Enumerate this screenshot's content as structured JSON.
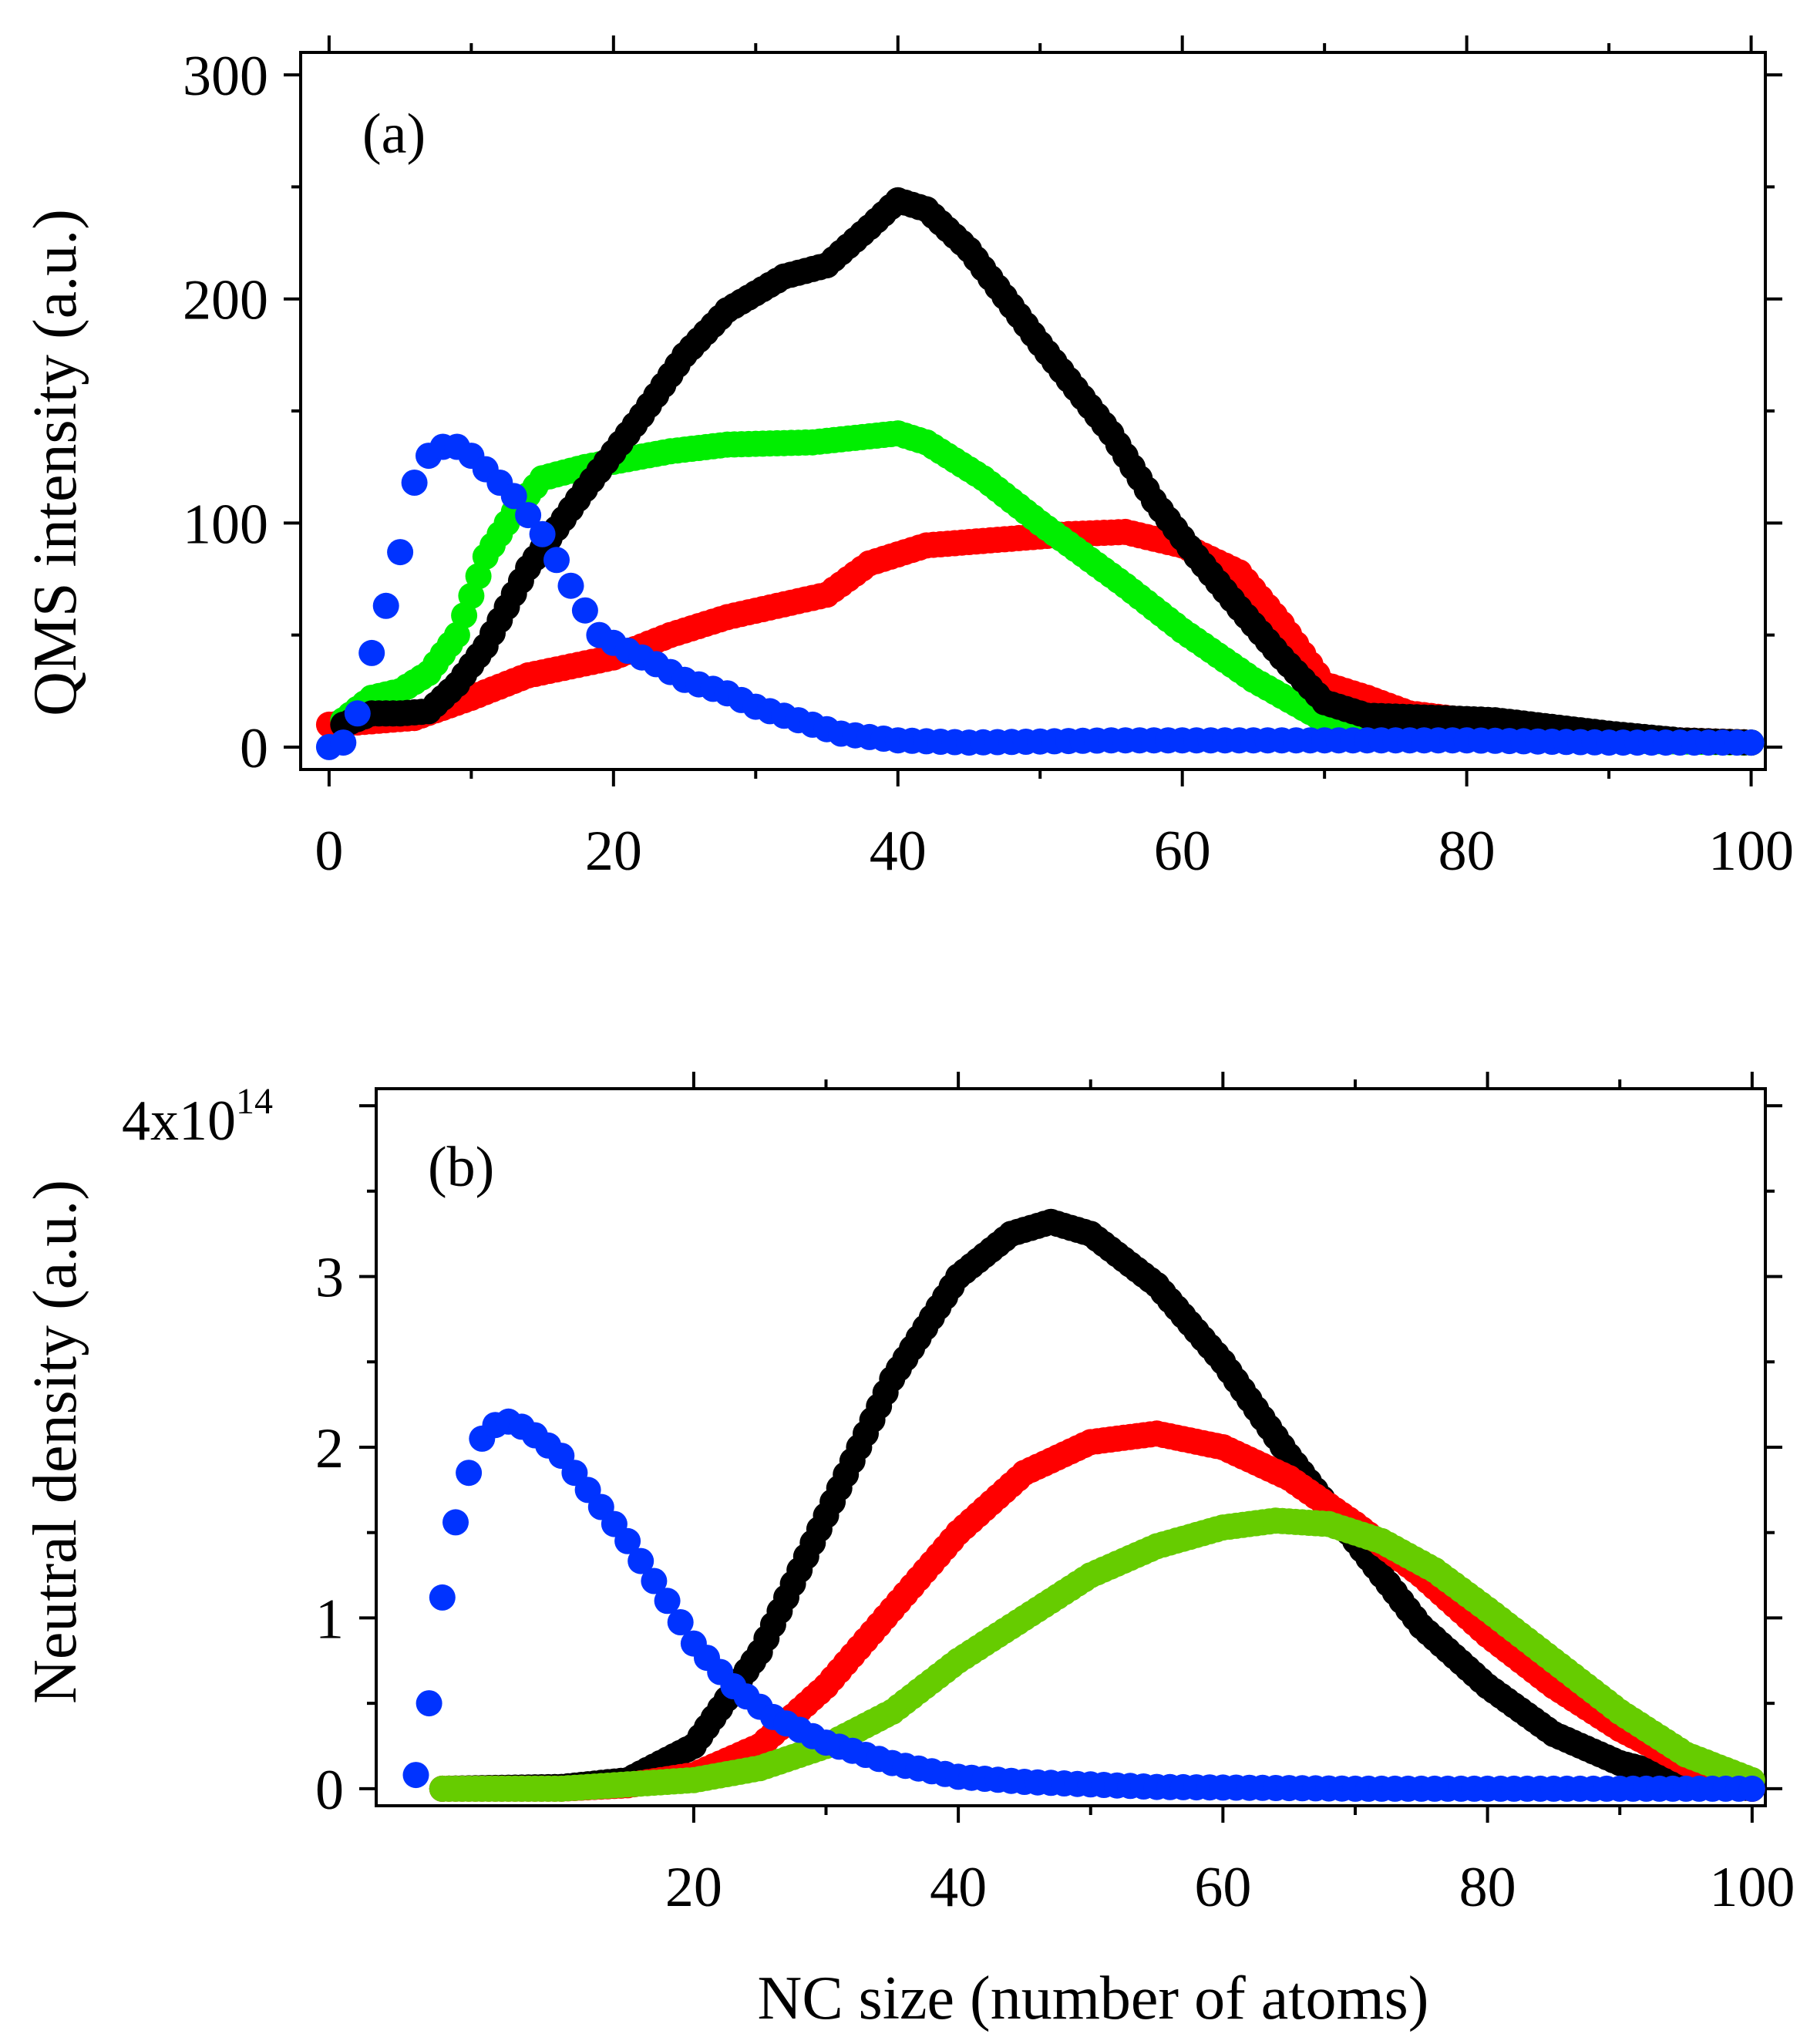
{
  "chart_data": [
    {
      "type": "scatter",
      "panel_label": "(a)",
      "ylabel": "QMS intensity (a.u.)",
      "xlabel": "",
      "xlim": [
        -2,
        101
      ],
      "ylim": [
        -10,
        310
      ],
      "x_ticks": [
        0,
        20,
        40,
        60,
        80,
        100
      ],
      "x_tick_labels": [
        "0",
        "20",
        "40",
        "60",
        "80",
        "100"
      ],
      "y_ticks": [
        0,
        100,
        200,
        300
      ],
      "y_tick_labels": [
        "0",
        "100",
        "200",
        "300"
      ],
      "x_minor_ticks": [
        10,
        30,
        50,
        70,
        90
      ],
      "y_minor_ticks": [
        50,
        150,
        250
      ],
      "series": [
        {
          "name": "red",
          "color": "#ff0000",
          "x_start": 0,
          "x_step": 0.5,
          "points": [
            [
              0,
              10
            ],
            [
              6,
              13
            ],
            [
              10,
              22
            ],
            [
              14,
              32
            ],
            [
              20,
              40
            ],
            [
              24,
              50
            ],
            [
              28,
              58
            ],
            [
              35,
              68
            ],
            [
              38,
              82
            ],
            [
              42,
              90
            ],
            [
              48,
              93
            ],
            [
              52,
              95
            ],
            [
              56,
              96
            ],
            [
              60,
              90
            ],
            [
              64,
              78
            ],
            [
              67,
              55
            ],
            [
              70,
              28
            ],
            [
              73,
              22
            ],
            [
              76,
              15
            ],
            [
              80,
              12
            ],
            [
              85,
              8
            ],
            [
              90,
              5
            ],
            [
              95,
              3
            ],
            [
              100,
              2
            ]
          ]
        },
        {
          "name": "green",
          "color": "#00ee00",
          "x_start": 1,
          "x_step": 0.5,
          "points": [
            [
              1,
              12
            ],
            [
              3,
              22
            ],
            [
              5,
              25
            ],
            [
              7,
              33
            ],
            [
              9,
              50
            ],
            [
              11,
              85
            ],
            [
              13,
              105
            ],
            [
              15,
              120
            ],
            [
              18,
              125
            ],
            [
              24,
              132
            ],
            [
              28,
              135
            ],
            [
              34,
              136
            ],
            [
              40,
              140
            ],
            [
              42,
              136
            ],
            [
              46,
              120
            ],
            [
              50,
              100
            ],
            [
              56,
              72
            ],
            [
              60,
              52
            ],
            [
              65,
              30
            ],
            [
              70,
              12
            ],
            [
              75,
              7
            ],
            [
              80,
              5
            ],
            [
              90,
              3
            ],
            [
              100,
              2
            ]
          ]
        },
        {
          "name": "black",
          "color": "#000000",
          "x_start": 1,
          "x_step": 0.5,
          "points": [
            [
              1,
              10
            ],
            [
              3,
              15
            ],
            [
              5,
              15
            ],
            [
              7,
              16
            ],
            [
              9,
              28
            ],
            [
              11,
              45
            ],
            [
              14,
              80
            ],
            [
              18,
              115
            ],
            [
              22,
              148
            ],
            [
              25,
              175
            ],
            [
              28,
              195
            ],
            [
              32,
              210
            ],
            [
              35,
              215
            ],
            [
              38,
              232
            ],
            [
              40,
              244
            ],
            [
              42,
              240
            ],
            [
              45,
              222
            ],
            [
              50,
              180
            ],
            [
              55,
              140
            ],
            [
              58,
              110
            ],
            [
              61,
              85
            ],
            [
              64,
              62
            ],
            [
              67,
              40
            ],
            [
              70,
              20
            ],
            [
              73,
              14
            ],
            [
              78,
              13
            ],
            [
              82,
              12
            ],
            [
              86,
              9
            ],
            [
              90,
              6
            ],
            [
              95,
              3
            ],
            [
              100,
              2
            ]
          ]
        },
        {
          "name": "blue",
          "color": "#0033ff",
          "x_start": 0,
          "x_step": 1,
          "points": [
            [
              0,
              0
            ],
            [
              1,
              2
            ],
            [
              2,
              15
            ],
            [
              3,
              42
            ],
            [
              4,
              63
            ],
            [
              5,
              87
            ],
            [
              6,
              118
            ],
            [
              7,
              130
            ],
            [
              8,
              134
            ],
            [
              9,
              134
            ],
            [
              10,
              130
            ],
            [
              11,
              124
            ],
            [
              13,
              112
            ],
            [
              15,
              95
            ],
            [
              17,
              72
            ],
            [
              19,
              50
            ],
            [
              21,
              43
            ],
            [
              23,
              37
            ],
            [
              25,
              30
            ],
            [
              28,
              24
            ],
            [
              30,
              18
            ],
            [
              33,
              12
            ],
            [
              36,
              6
            ],
            [
              40,
              3
            ],
            [
              45,
              2
            ],
            [
              55,
              3
            ],
            [
              70,
              3
            ],
            [
              80,
              3
            ],
            [
              90,
              2
            ],
            [
              100,
              2
            ]
          ]
        }
      ]
    },
    {
      "type": "scatter",
      "panel_label": "(b)",
      "ylabel": "Neutral density (a.u.)",
      "xlabel": "NC size (number of atoms)",
      "xlim": [
        -4,
        101
      ],
      "ylim": [
        -0.1,
        4.1
      ],
      "x_ticks": [
        20,
        40,
        60,
        80,
        100
      ],
      "x_tick_labels": [
        "20",
        "40",
        "60",
        "80",
        "100"
      ],
      "x_minor_ticks": [
        30,
        50,
        70,
        90
      ],
      "y_ticks": [
        0,
        1,
        2,
        3,
        4
      ],
      "y_tick_labels": [
        "0",
        "1",
        "2",
        "3",
        ""
      ],
      "y_minor_ticks": [
        0.5,
        1.5,
        2.5,
        3.5
      ],
      "y_top_label": {
        "base": "4x10",
        "exponent": "14"
      },
      "series": [
        {
          "name": "black",
          "color": "#000000",
          "x_start": 1,
          "x_step": 0.5,
          "points": [
            [
              1,
              0
            ],
            [
              10,
              0.01
            ],
            [
              15,
              0.05
            ],
            [
              20,
              0.25
            ],
            [
              25,
              0.8
            ],
            [
              30,
              1.6
            ],
            [
              35,
              2.4
            ],
            [
              40,
              3.0
            ],
            [
              44,
              3.25
            ],
            [
              47,
              3.32
            ],
            [
              50,
              3.25
            ],
            [
              55,
              2.95
            ],
            [
              60,
              2.5
            ],
            [
              65,
              1.95
            ],
            [
              70,
              1.45
            ],
            [
              75,
              0.95
            ],
            [
              80,
              0.6
            ],
            [
              85,
              0.32
            ],
            [
              90,
              0.15
            ],
            [
              95,
              0.05
            ],
            [
              100,
              0
            ]
          ]
        },
        {
          "name": "red",
          "color": "#ff0000",
          "x_start": 1,
          "x_step": 0.5,
          "points": [
            [
              1,
              0
            ],
            [
              10,
              0.0
            ],
            [
              15,
              0.02
            ],
            [
              20,
              0.08
            ],
            [
              25,
              0.25
            ],
            [
              30,
              0.6
            ],
            [
              35,
              1.05
            ],
            [
              40,
              1.5
            ],
            [
              45,
              1.85
            ],
            [
              50,
              2.03
            ],
            [
              55,
              2.08
            ],
            [
              60,
              2.0
            ],
            [
              65,
              1.82
            ],
            [
              70,
              1.55
            ],
            [
              75,
              1.25
            ],
            [
              80,
              0.9
            ],
            [
              85,
              0.6
            ],
            [
              90,
              0.35
            ],
            [
              95,
              0.15
            ],
            [
              100,
              0
            ]
          ]
        },
        {
          "name": "yellow-green",
          "color": "#66cc00",
          "x_start": 1,
          "x_step": 0.5,
          "points": [
            [
              1,
              0
            ],
            [
              10,
              0.0
            ],
            [
              20,
              0.05
            ],
            [
              25,
              0.12
            ],
            [
              30,
              0.25
            ],
            [
              35,
              0.45
            ],
            [
              40,
              0.75
            ],
            [
              45,
              1.0
            ],
            [
              50,
              1.25
            ],
            [
              55,
              1.42
            ],
            [
              60,
              1.53
            ],
            [
              64,
              1.57
            ],
            [
              68,
              1.55
            ],
            [
              72,
              1.45
            ],
            [
              76,
              1.28
            ],
            [
              80,
              1.05
            ],
            [
              85,
              0.75
            ],
            [
              90,
              0.45
            ],
            [
              95,
              0.2
            ],
            [
              100,
              0.05
            ]
          ]
        },
        {
          "name": "blue",
          "color": "#0033ff",
          "x_start": -1,
          "x_step": 1,
          "points": [
            [
              -1,
              0.08
            ],
            [
              0,
              0.5
            ],
            [
              1,
              1.12
            ],
            [
              2,
              1.56
            ],
            [
              3,
              1.85
            ],
            [
              4,
              2.05
            ],
            [
              5,
              2.13
            ],
            [
              6,
              2.15
            ],
            [
              7,
              2.12
            ],
            [
              8,
              2.07
            ],
            [
              10,
              1.95
            ],
            [
              12,
              1.75
            ],
            [
              15,
              1.45
            ],
            [
              18,
              1.1
            ],
            [
              20,
              0.85
            ],
            [
              23,
              0.6
            ],
            [
              26,
              0.42
            ],
            [
              30,
              0.27
            ],
            [
              35,
              0.15
            ],
            [
              40,
              0.07
            ],
            [
              45,
              0.04
            ],
            [
              55,
              0.01
            ],
            [
              70,
              0
            ],
            [
              100,
              0
            ]
          ]
        }
      ]
    }
  ]
}
